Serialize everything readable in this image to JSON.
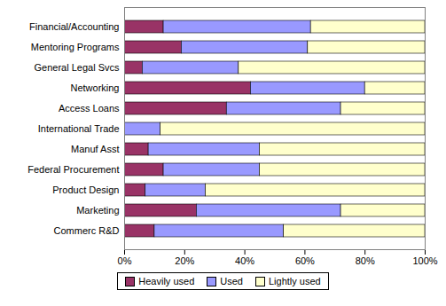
{
  "chart_data": {
    "type": "bar",
    "orientation": "horizontal",
    "stacked": true,
    "grid": false,
    "legend": "bottom",
    "categories": [
      "Financial/Accounting",
      "Mentoring Programs",
      "General Legal Svcs",
      "Networking",
      "Access Loans",
      "International Trade",
      "Manuf Asst",
      "Federal Procurement",
      "Product Design",
      "Marketing",
      "Commerc R&D"
    ],
    "series": [
      {
        "name": "Heavily used",
        "color": "#993366",
        "values": [
          13,
          19,
          6,
          42,
          34,
          0,
          8,
          13,
          7,
          24,
          10
        ]
      },
      {
        "name": "Used",
        "color": "#9999ff",
        "values": [
          49,
          42,
          32,
          38,
          38,
          12,
          37,
          32,
          20,
          48,
          43
        ]
      },
      {
        "name": "Lightly used",
        "color": "#ffffcc",
        "values": [
          38,
          39,
          62,
          20,
          28,
          88,
          55,
          55,
          73,
          28,
          47
        ]
      }
    ],
    "xlim": [
      0,
      100
    ],
    "xticks": [
      {
        "value": 0,
        "label": "0%"
      },
      {
        "value": 20,
        "label": "20%"
      },
      {
        "value": 40,
        "label": "40%"
      },
      {
        "value": 60,
        "label": "60%"
      },
      {
        "value": 80,
        "label": "80%"
      },
      {
        "value": 100,
        "label": "100%"
      }
    ]
  }
}
